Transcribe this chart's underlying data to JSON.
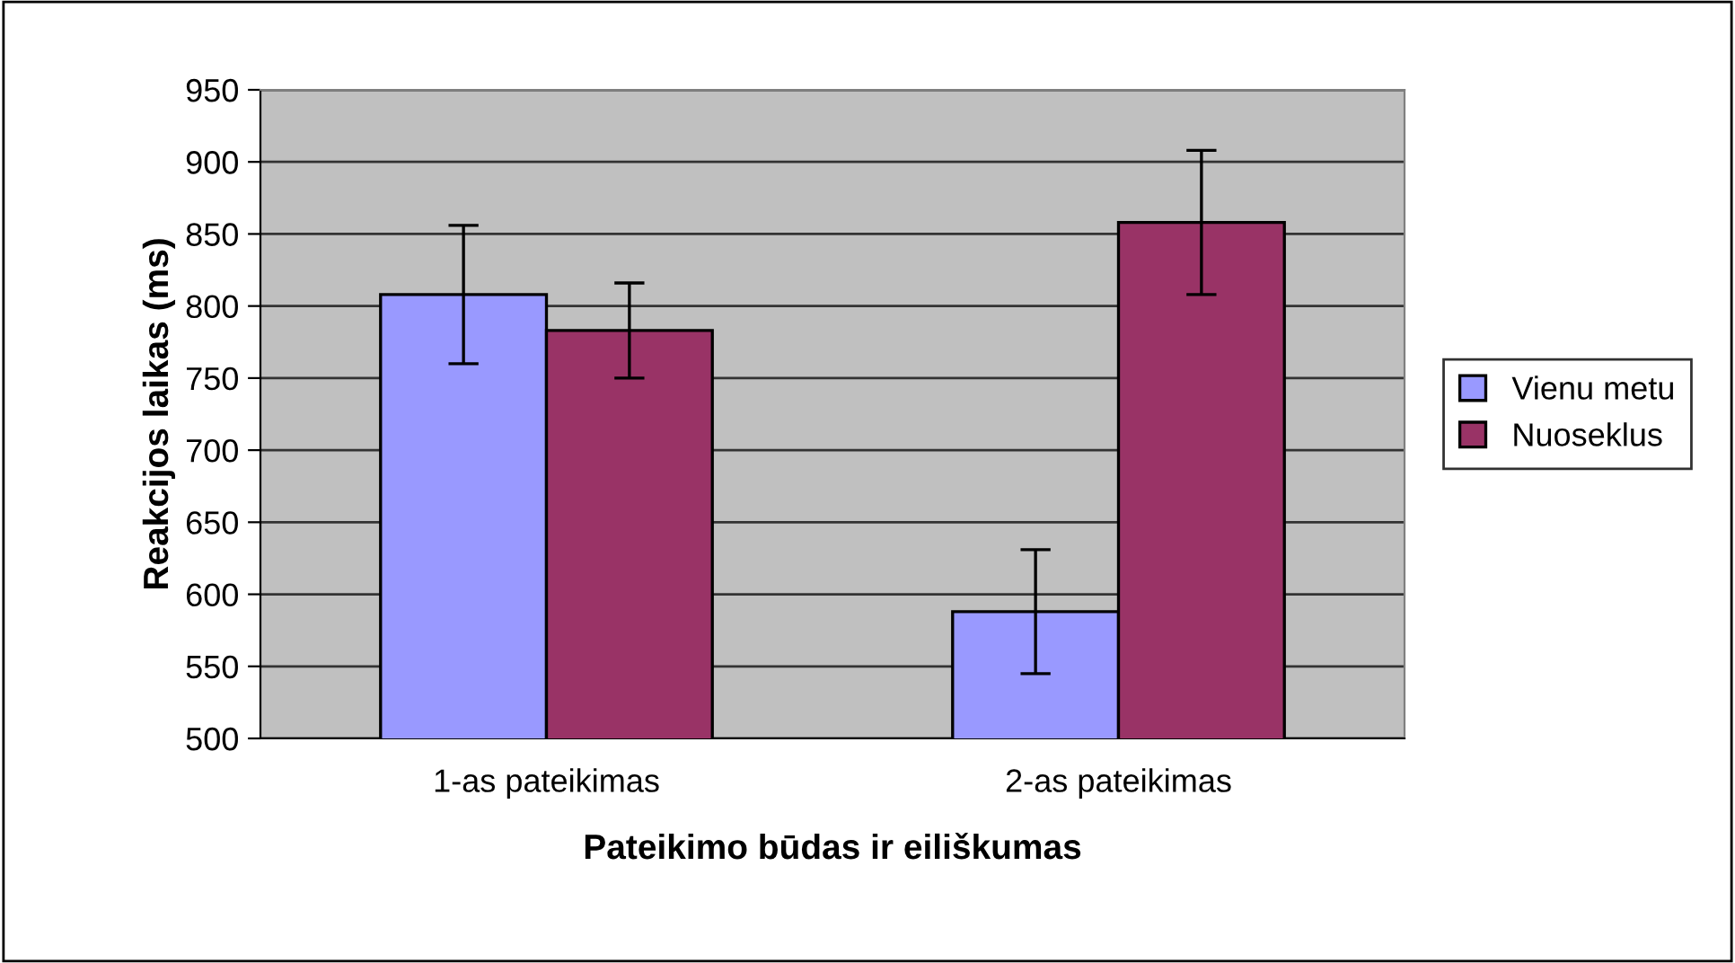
{
  "chart_data": {
    "type": "bar",
    "xlabel": "Pateikimo būdas ir eiliškumas",
    "ylabel": "Reakcijos laikas (ms)",
    "categories": [
      "1-as pateikimas",
      "2-as pateikimas"
    ],
    "series": [
      {
        "name": "Vienu metu",
        "color": "#9999ff",
        "values": [
          808,
          588
        ],
        "errors": [
          48,
          43
        ]
      },
      {
        "name": "Nuoseklus",
        "color": "#993366",
        "values": [
          783,
          858
        ],
        "errors": [
          33,
          50
        ]
      }
    ],
    "ylim": [
      500,
      950
    ],
    "yticks": [
      500,
      550,
      600,
      650,
      700,
      750,
      800,
      850,
      900,
      950
    ],
    "grid": "y",
    "legend": "right"
  }
}
